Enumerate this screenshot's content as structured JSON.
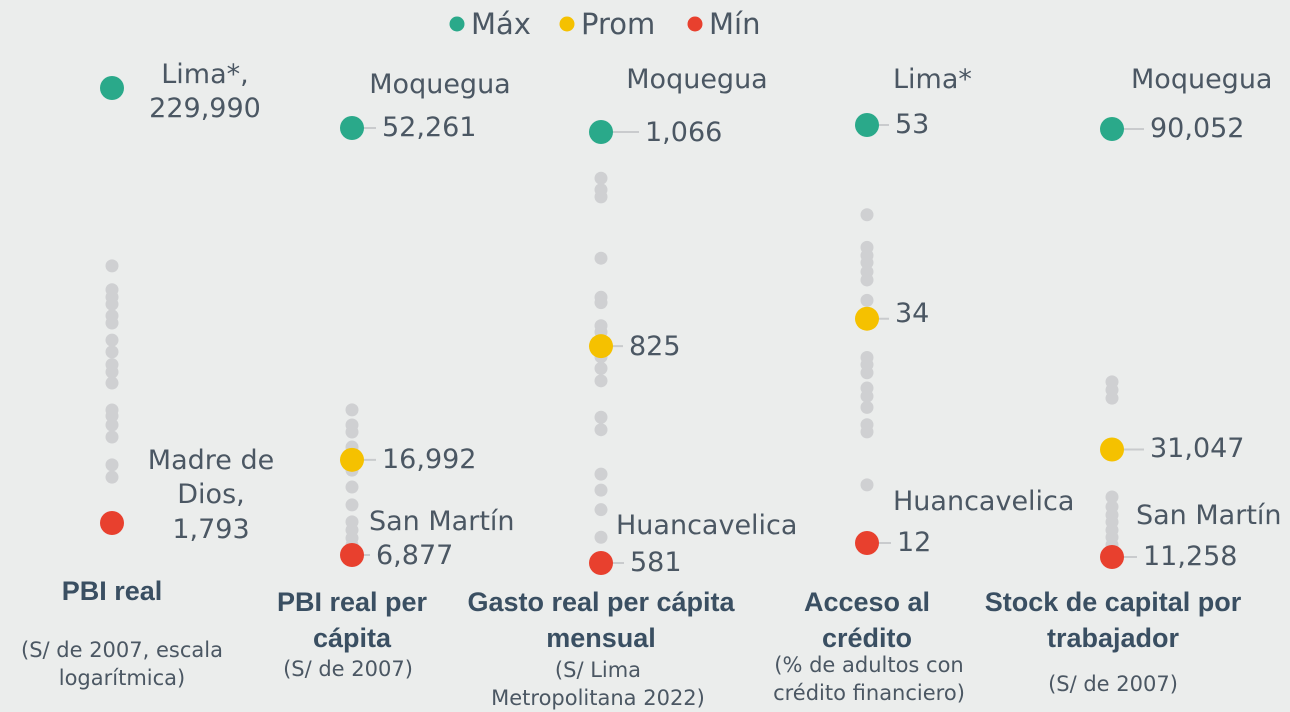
{
  "chart_data": {
    "type": "strip",
    "legend": [
      {
        "name": "Máx",
        "color": "#2aa98a"
      },
      {
        "name": "Prom",
        "color": "#f5c100"
      },
      {
        "name": "Mín",
        "color": "#e8402e"
      }
    ],
    "other_color": "#cfd0d2",
    "panels": [
      {
        "title": "PBI real",
        "subtitle": "(S/ de 2007, escala logarítmica)",
        "log_scale": true,
        "max": {
          "region": "Lima*,",
          "value": 229990,
          "value_label": "229,990"
        },
        "min": {
          "region": "Madre de Dios,",
          "value": 1793,
          "value_label": "1,793"
        },
        "others": [
          31600,
          24200,
          22300,
          20600,
          18100,
          16700,
          13800,
          12100,
          10500,
          9670,
          8550,
          6330,
          5920,
          5350,
          4680,
          3430,
          2990
        ]
      },
      {
        "title": "PBI real per cápita",
        "subtitle": "(S/ de 2007)",
        "log_scale": false,
        "max": {
          "region": "Moquegua",
          "value": 52261,
          "value_label": "52,261"
        },
        "avg": {
          "value": 16992,
          "value_label": "16,992"
        },
        "min": {
          "region": "San Martín",
          "value": 6877,
          "value_label": "6,877"
        },
        "others": [
          22300,
          20700,
          19950,
          18350,
          15900,
          14100,
          12200,
          10400,
          9530,
          8680,
          7930
        ]
      },
      {
        "title": "Gasto real per cápita mensual",
        "subtitle": "(S/ Lima Metropolitana 2022)",
        "log_scale": false,
        "max": {
          "region": "Moquegua",
          "value": 1066,
          "value_label": "1,066"
        },
        "avg": {
          "value": 825
        },
        "min": {
          "region": "Huancavelica",
          "value": 581
        },
        "others": [
          1014,
          1001,
          993,
          924,
          880,
          874,
          848,
          841,
          813,
          800,
          786,
          745,
          731,
          681,
          663,
          641,
          610
        ]
      },
      {
        "title": "Acceso al crédito",
        "subtitle": "(% de adultos con crédito financiero)",
        "log_scale": false,
        "max": {
          "region": "Lima*",
          "value": 53
        },
        "avg": {
          "value": 34
        },
        "min": {
          "region": "Huancavelica",
          "value": 12
        },
        "others": [
          44.2,
          41.0,
          40.2,
          39.5,
          38.6,
          37.8,
          35.8,
          30.2,
          29.5,
          28.7,
          27.2,
          26.4,
          25.3,
          23.6,
          22.9,
          17.7
        ]
      },
      {
        "title": "Stock de capital por trabajador",
        "subtitle": "(S/ de 2007)",
        "log_scale": false,
        "max": {
          "region": "Moquegua",
          "value": 90052,
          "value_label": "90,052"
        },
        "avg": {
          "value": 31047,
          "value_label": "31,047"
        },
        "min": {
          "region": "San Martín",
          "value": 11258,
          "value_label": "11,258"
        },
        "others": [
          43500,
          42000,
          40500,
          22300,
          20500,
          19000,
          17700,
          16200,
          14900,
          13500
        ]
      }
    ]
  }
}
